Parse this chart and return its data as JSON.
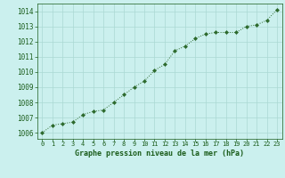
{
  "x": [
    0,
    1,
    2,
    3,
    4,
    5,
    6,
    7,
    8,
    9,
    10,
    11,
    12,
    13,
    14,
    15,
    16,
    17,
    18,
    19,
    20,
    21,
    22,
    23
  ],
  "y": [
    1006.0,
    1006.5,
    1006.6,
    1006.7,
    1007.2,
    1007.4,
    1007.5,
    1008.0,
    1008.5,
    1009.0,
    1009.4,
    1010.1,
    1010.5,
    1011.4,
    1011.7,
    1012.2,
    1012.5,
    1012.6,
    1012.6,
    1012.6,
    1013.0,
    1013.1,
    1013.4,
    1014.1
  ],
  "line_color": "#2d6a2d",
  "marker_color": "#2d6a2d",
  "bg_plot": "#cbf0ee",
  "bg_fig": "#cbf0ee",
  "grid_color": "#aad8d3",
  "xlabel": "Graphe pression niveau de la mer (hPa)",
  "xlabel_color": "#1a5c1a",
  "tick_color": "#1a5c1a",
  "ylim": [
    1005.6,
    1014.5
  ],
  "yticks": [
    1006,
    1007,
    1008,
    1009,
    1010,
    1011,
    1012,
    1013,
    1014
  ],
  "xlim": [
    -0.5,
    23.5
  ],
  "xticks": [
    0,
    1,
    2,
    3,
    4,
    5,
    6,
    7,
    8,
    9,
    10,
    11,
    12,
    13,
    14,
    15,
    16,
    17,
    18,
    19,
    20,
    21,
    22,
    23
  ]
}
